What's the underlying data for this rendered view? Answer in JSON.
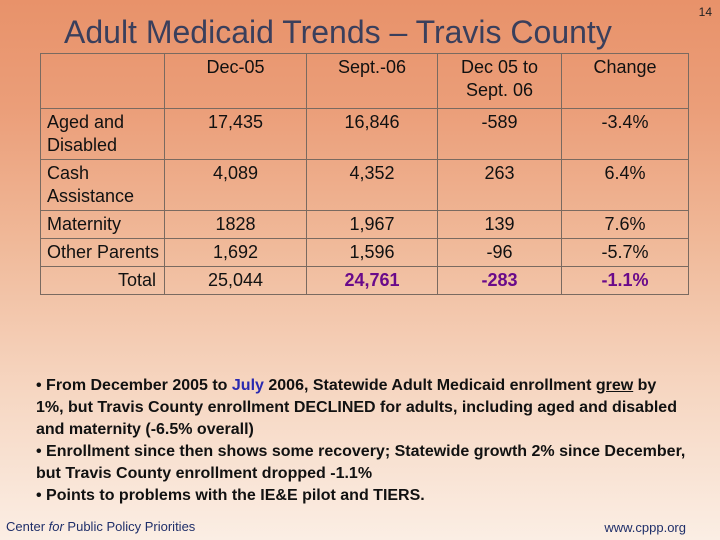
{
  "title": "Adult Medicaid Trends – Travis County",
  "page_number": "14",
  "table": {
    "columns": [
      "",
      "Dec-05",
      "Sept.-06",
      "Dec 05 to Sept. 06",
      "Change"
    ],
    "rows": [
      {
        "label": "Aged and Disabled",
        "dec05": "17,435",
        "sept06": "16,846",
        "diff": "-589",
        "change": "-3.4%"
      },
      {
        "label": "Cash Assistance",
        "dec05": "4,089",
        "sept06": "4,352",
        "diff": "263",
        "change": "6.4%"
      },
      {
        "label": "Maternity",
        "dec05": "1828",
        "sept06": "1,967",
        "diff": "139",
        "change": "7.6%"
      },
      {
        "label": "Other Parents",
        "dec05": "1,692",
        "sept06": "1,596",
        "diff": "-96",
        "change": "-5.7%"
      }
    ],
    "total": {
      "label": "Total",
      "dec05": "25,044",
      "sept06": "24,761",
      "diff": "-283",
      "change": "-1.1%"
    }
  },
  "notes": {
    "b1_prefix": "• From December 2005 to ",
    "b1_month": "July",
    "b1_mid": " 2006, Statewide Adult Medicaid enrollment ",
    "b1_grew": "grew",
    "b1_rest": " by 1%, but Travis County enrollment DECLINED for adults, including aged and disabled and maternity (-6.5% overall)",
    "b2": "• Enrollment since then shows some recovery; Statewide growth 2% since December, but Travis County enrollment dropped -1.1%",
    "b3": "• Points to problems with the IE&E pilot and TIERS."
  },
  "footer": {
    "org_pre": "Center ",
    "org_for": "for",
    "org_post": " Public Policy Priorities",
    "url": "www.cppp.org"
  }
}
